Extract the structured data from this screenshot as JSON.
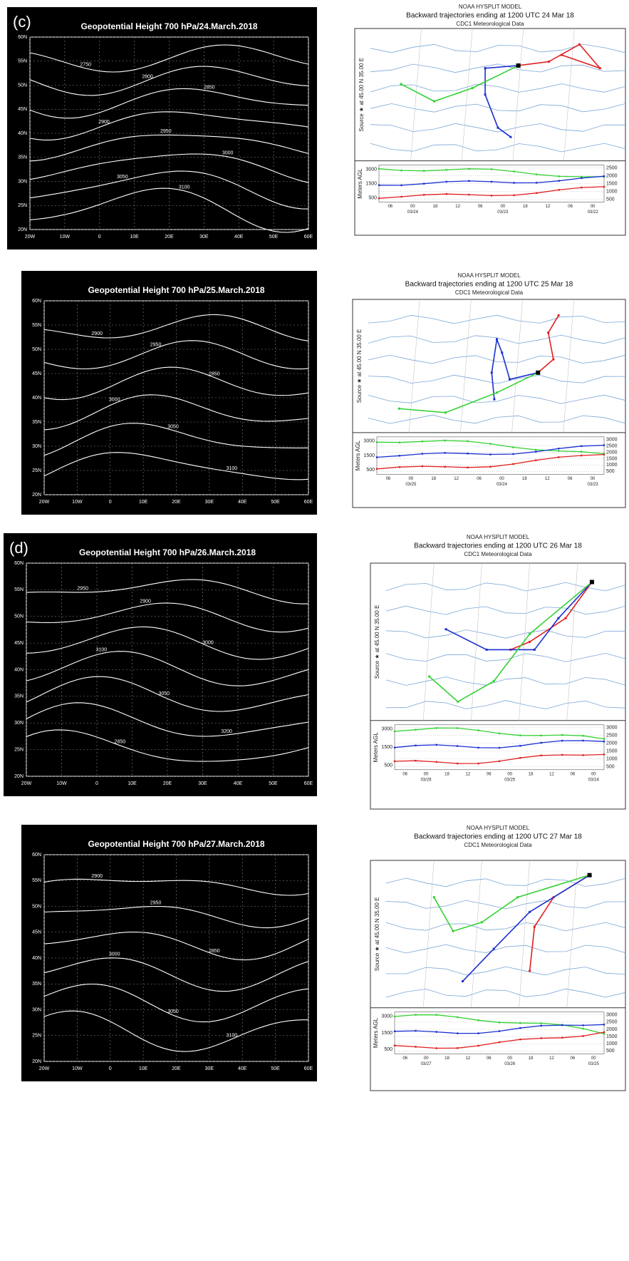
{
  "panels": [
    {
      "label": "(c)",
      "map": {
        "title": "Geopotential Height 700 hPa/24.March.2018",
        "contour_labels": [
          "2750",
          "2800",
          "2850",
          "2900",
          "2950",
          "3000",
          "3050",
          "3100"
        ]
      },
      "hysplit": {
        "model": "NOAA HYSPLIT MODEL",
        "title": "Backward trajectories ending at 1200 UTC 24 Mar 18",
        "data_source": "CDC1 Meteorological Data",
        "source": "Source ★ at 45.00 N 35.00 E",
        "y_axis_title": "Meters AGL",
        "left_ticks": [
          "3000",
          "1500",
          "500"
        ],
        "right_ticks": [
          "2500",
          "2000",
          "1500",
          "1000",
          "500"
        ],
        "time_labels": [
          "06",
          "00",
          "18",
          "12",
          "06",
          "00",
          "18",
          "12",
          "06",
          "00"
        ],
        "date_labels": [
          "03/24",
          "03/23",
          "03/22"
        ]
      }
    },
    {
      "map": {
        "title": "Geopotential Height 700 hPa/25.March.2018",
        "contour_labels": [
          "2900",
          "2950",
          "2850",
          "3000",
          "3050",
          "3100"
        ]
      },
      "hysplit": {
        "model": "NOAA HYSPLIT MODEL",
        "title": "Backward trajectories ending at 1200 UTC 25 Mar 18",
        "data_source": "CDC1 Meteorological Data",
        "source": "Source ★ at 45.00 N 35.00 E",
        "y_axis_title": "Meters AGL",
        "left_ticks": [
          "3000",
          "1500",
          "500"
        ],
        "right_ticks": [
          "3000",
          "2500",
          "2000",
          "1500",
          "1000",
          "500"
        ],
        "time_labels": [
          "06",
          "00",
          "18",
          "12",
          "06",
          "00",
          "18",
          "12",
          "06",
          "00"
        ],
        "date_labels": [
          "03/25",
          "03/24",
          "03/23"
        ]
      }
    },
    {
      "label": "(d)",
      "map": {
        "title": "Geopotential Height 700 hPa/26.March.2018",
        "contour_labels": [
          "2950",
          "2900",
          "3000",
          "3100",
          "3050",
          "3200",
          "2850"
        ]
      },
      "hysplit": {
        "model": "NOAA HYSPLIT MODEL",
        "title": "Backward trajectories ending at 1200 UTC 26 Mar 18",
        "data_source": "CDC1 Meteorological Data",
        "source": "Source ★ at 45.00 N 35.00 E",
        "y_axis_title": "Meters AGL",
        "left_ticks": [
          "3000",
          "1500",
          "500"
        ],
        "right_ticks": [
          "3000",
          "2500",
          "2000",
          "1500",
          "1000",
          "500"
        ],
        "time_labels": [
          "06",
          "00",
          "18",
          "12",
          "06",
          "00",
          "18",
          "12",
          "06",
          "00"
        ],
        "date_labels": [
          "03/26",
          "03/25",
          "03/24"
        ]
      }
    },
    {
      "map": {
        "title": "Geopotential Height 700 hPa/27.March.2018",
        "contour_labels": [
          "2900",
          "2950",
          "2850",
          "3000",
          "3050",
          "3100"
        ]
      },
      "hysplit": {
        "model": "NOAA HYSPLIT MODEL",
        "title": "Backward trajectories ending at 1200 UTC 27 Mar 18",
        "data_source": "CDC1 Meteorological Data",
        "source": "Source ★ at 45.00 N 35.00 E",
        "y_axis_title": "Meters AGL",
        "left_ticks": [
          "3000",
          "1500",
          "500"
        ],
        "right_ticks": [
          "3000",
          "2500",
          "2000",
          "1500",
          "1000",
          "500"
        ],
        "time_labels": [
          "06",
          "00",
          "18",
          "12",
          "06",
          "00",
          "18",
          "12",
          "06",
          "00"
        ],
        "date_labels": [
          "03/27",
          "03/26",
          "03/25"
        ]
      }
    }
  ],
  "lon_labels": [
    "20W",
    "10W",
    "0",
    "10E",
    "20E",
    "30E",
    "40E",
    "50E",
    "60E"
  ],
  "lat_labels": [
    "60N",
    "55N",
    "50N",
    "45N",
    "40N",
    "35N",
    "30N",
    "25N",
    "20N"
  ]
}
